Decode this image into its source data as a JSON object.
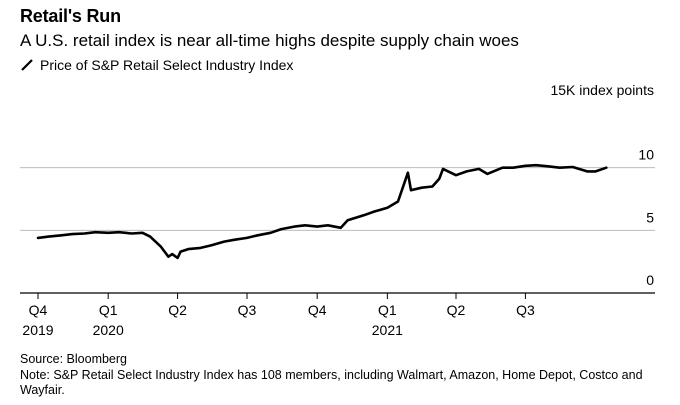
{
  "title": "Retail's Run",
  "subtitle": "A U.S. retail index is near all-time highs despite supply chain woes",
  "legend_label": "Price of S&P Retail Select Industry Index",
  "unit_label": "15K index points",
  "source": "Source: Bloomberg",
  "note": "Note: S&P Retail Select Industry Index has 108 members, including Walmart, Amazon, Home Depot, Costco and Wayfair.",
  "colors": {
    "line": "#000000",
    "grid": "#bdbdbd",
    "axis": "#000000"
  },
  "chart_data": {
    "type": "line",
    "ylim": [
      0,
      15
    ],
    "yticks": [
      {
        "value": 10,
        "label": "10"
      },
      {
        "value": 5,
        "label": "5"
      },
      {
        "value": 0,
        "label": "0"
      }
    ],
    "xlim": [
      "2019-10-01",
      "2021-12-31"
    ],
    "xticks": [
      {
        "date": "2019-10-01",
        "label": "Q4",
        "year": "2019"
      },
      {
        "date": "2020-01-01",
        "label": "Q1",
        "year": "2020"
      },
      {
        "date": "2020-04-01",
        "label": "Q2",
        "year": ""
      },
      {
        "date": "2020-07-01",
        "label": "Q3",
        "year": ""
      },
      {
        "date": "2020-10-01",
        "label": "Q4",
        "year": ""
      },
      {
        "date": "2021-01-01",
        "label": "Q1",
        "year": "2021"
      },
      {
        "date": "2021-04-01",
        "label": "Q2",
        "year": ""
      },
      {
        "date": "2021-07-01",
        "label": "Q3",
        "year": ""
      }
    ],
    "series": [
      {
        "points": [
          [
            "2019-10-01",
            4.4
          ],
          [
            "2019-10-15",
            4.5
          ],
          [
            "2019-11-01",
            4.6
          ],
          [
            "2019-11-15",
            4.7
          ],
          [
            "2019-12-01",
            4.75
          ],
          [
            "2019-12-15",
            4.85
          ],
          [
            "2020-01-01",
            4.8
          ],
          [
            "2020-01-15",
            4.85
          ],
          [
            "2020-02-01",
            4.75
          ],
          [
            "2020-02-15",
            4.8
          ],
          [
            "2020-02-25",
            4.5
          ],
          [
            "2020-03-10",
            3.7
          ],
          [
            "2020-03-20",
            2.9
          ],
          [
            "2020-03-25",
            3.1
          ],
          [
            "2020-04-01",
            2.8
          ],
          [
            "2020-04-05",
            3.3
          ],
          [
            "2020-04-15",
            3.5
          ],
          [
            "2020-05-01",
            3.6
          ],
          [
            "2020-05-15",
            3.8
          ],
          [
            "2020-06-01",
            4.1
          ],
          [
            "2020-06-15",
            4.25
          ],
          [
            "2020-07-01",
            4.4
          ],
          [
            "2020-07-15",
            4.6
          ],
          [
            "2020-08-01",
            4.8
          ],
          [
            "2020-08-15",
            5.1
          ],
          [
            "2020-09-01",
            5.3
          ],
          [
            "2020-09-15",
            5.4
          ],
          [
            "2020-10-01",
            5.3
          ],
          [
            "2020-10-15",
            5.4
          ],
          [
            "2020-11-01",
            5.2
          ],
          [
            "2020-11-10",
            5.8
          ],
          [
            "2020-12-01",
            6.2
          ],
          [
            "2020-12-15",
            6.5
          ],
          [
            "2021-01-01",
            6.8
          ],
          [
            "2021-01-15",
            7.3
          ],
          [
            "2021-01-28",
            9.6
          ],
          [
            "2021-02-01",
            8.2
          ],
          [
            "2021-02-15",
            8.4
          ],
          [
            "2021-03-01",
            8.5
          ],
          [
            "2021-03-10",
            9.1
          ],
          [
            "2021-03-15",
            9.9
          ],
          [
            "2021-04-01",
            9.4
          ],
          [
            "2021-04-15",
            9.7
          ],
          [
            "2021-05-01",
            9.9
          ],
          [
            "2021-05-12",
            9.5
          ],
          [
            "2021-06-01",
            10.0
          ],
          [
            "2021-06-15",
            10.0
          ],
          [
            "2021-07-01",
            10.15
          ],
          [
            "2021-07-15",
            10.2
          ],
          [
            "2021-08-01",
            10.1
          ],
          [
            "2021-08-15",
            10.0
          ],
          [
            "2021-09-01",
            10.05
          ],
          [
            "2021-09-20",
            9.7
          ],
          [
            "2021-10-01",
            9.7
          ],
          [
            "2021-10-15",
            10.0
          ]
        ]
      }
    ]
  }
}
